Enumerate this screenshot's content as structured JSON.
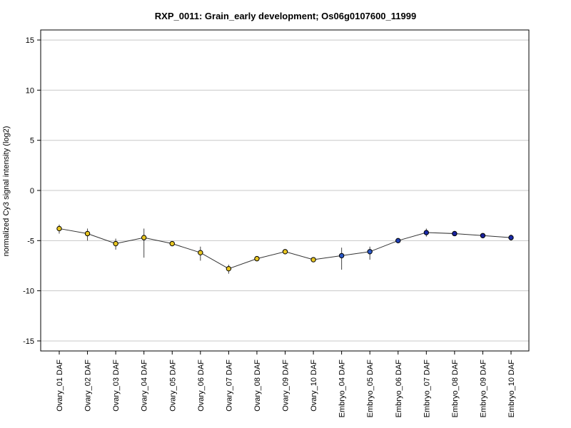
{
  "chart_data": {
    "type": "line",
    "title": "RXP_0011: Grain_early development; Os06g0107600_11999",
    "xlabel": "",
    "ylabel": "normalized Cy3 signal intensity (log2)",
    "ylim": [
      -16,
      16
    ],
    "yticks": [
      15,
      10,
      5,
      0,
      -5,
      -10,
      -15
    ],
    "grid": "horizontal",
    "categories": [
      "Ovary_01 DAF",
      "Ovary_02 DAF",
      "Ovary_03 DAF",
      "Ovary_04 DAF",
      "Ovary_05 DAF",
      "Ovary_06 DAF",
      "Ovary_07 DAF",
      "Ovary_08 DAF",
      "Ovary_09 DAF",
      "Ovary_10 DAF",
      "Embryo_04 DAF",
      "Embryo_05 DAF",
      "Embryo_06 DAF",
      "Embryo_07 DAF",
      "Embryo_08 DAF",
      "Embryo_09 DAF",
      "Embryo_10 DAF"
    ],
    "series": [
      {
        "values": [
          -3.8,
          -4.3,
          -5.3,
          -4.7,
          -5.3,
          -6.2,
          -7.8,
          -6.8,
          -6.1,
          -6.9,
          -6.5,
          -6.1,
          -5.0,
          -4.2,
          -4.3,
          -4.5,
          -4.7
        ],
        "err_low": [
          -4.3,
          -5.0,
          -5.9,
          -6.7,
          -5.5,
          -7.0,
          -8.3,
          -7.0,
          -6.3,
          -7.1,
          -7.9,
          -6.9,
          -5.2,
          -4.6,
          -4.5,
          -4.6,
          -5.0
        ],
        "err_high": [
          -3.4,
          -3.8,
          -4.8,
          -3.8,
          -5.1,
          -5.6,
          -7.4,
          -6.6,
          -5.9,
          -6.7,
          -5.7,
          -5.6,
          -4.8,
          -3.8,
          -4.1,
          -4.4,
          -4.4
        ],
        "point_colors": [
          "#e8c622",
          "#e8c622",
          "#e8c622",
          "#e8c622",
          "#e8c622",
          "#e8c622",
          "#e8c622",
          "#e8c622",
          "#e8c622",
          "#e8c622",
          "#2a58c8",
          "#2a58c8",
          "#1f3fb4",
          "#1a2aa8",
          "#1a22a0",
          "#1a229c",
          "#1a2aa8"
        ],
        "line_color": "#333333"
      }
    ]
  }
}
